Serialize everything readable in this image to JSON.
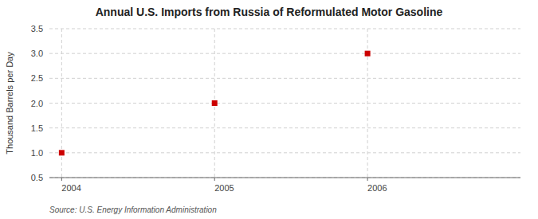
{
  "chart_data": {
    "type": "scatter",
    "title": "Annual U.S. Imports from Russia of Reformulated Motor Gasoline",
    "y_label": "Thousand Barrels per Day",
    "source": "Source: U.S. Energy Information Administration",
    "x": [
      2004,
      2005,
      2006
    ],
    "values": [
      1.0,
      2.0,
      3.0
    ],
    "color": "#cc0000",
    "marker": "square",
    "xlim": [
      2003.92,
      2007.0
    ],
    "xticks": [
      2004,
      2005,
      2006
    ],
    "ylim": [
      0.5,
      3.5
    ],
    "yticks": [
      0.5,
      {
        "value": 1.0,
        "label": "1.0"
      },
      1.5,
      {
        "value": 2.0,
        "label": "2.0"
      },
      2.5,
      {
        "value": 3.0,
        "label": "3.0"
      },
      3.5
    ],
    "grid": true
  }
}
